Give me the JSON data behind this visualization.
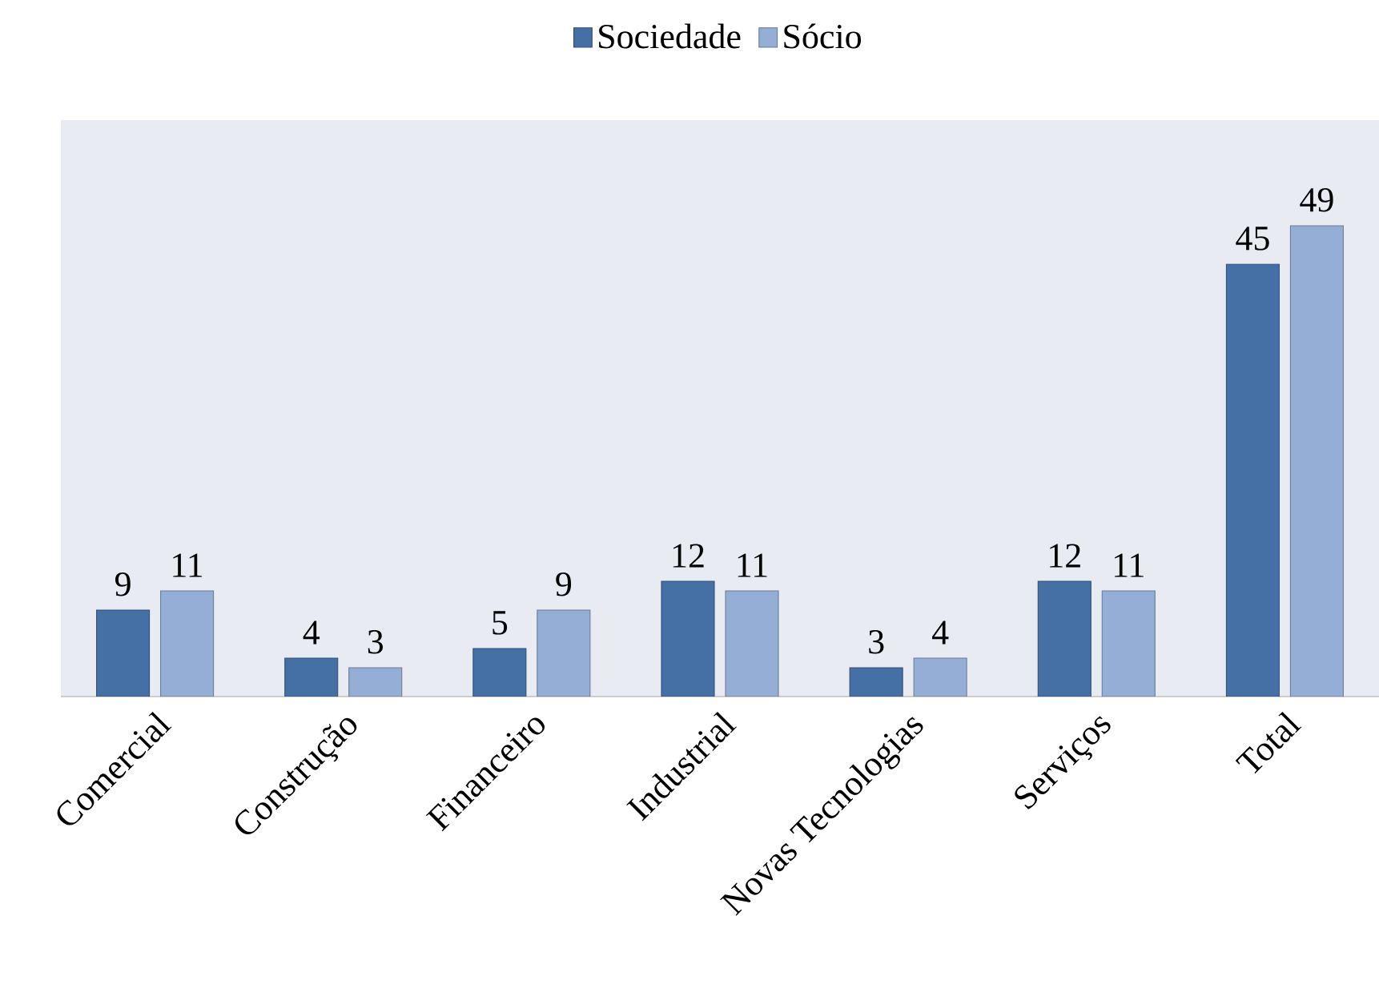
{
  "chart_data": {
    "type": "bar",
    "categories": [
      "Comercial",
      "Construção",
      "Financeiro",
      "Industrial",
      "Novas Tecnologias",
      "Serviços",
      "Total"
    ],
    "series": [
      {
        "name": "Sociedade",
        "color": "#4470a6",
        "values": [
          9,
          4,
          5,
          12,
          3,
          12,
          45
        ]
      },
      {
        "name": "Sócio",
        "color": "#95aed6",
        "values": [
          11,
          3,
          9,
          11,
          4,
          11,
          49
        ]
      }
    ],
    "ylim": [
      0,
      60
    ],
    "data_labels": true,
    "legend": "top",
    "tick_labels": "x"
  }
}
